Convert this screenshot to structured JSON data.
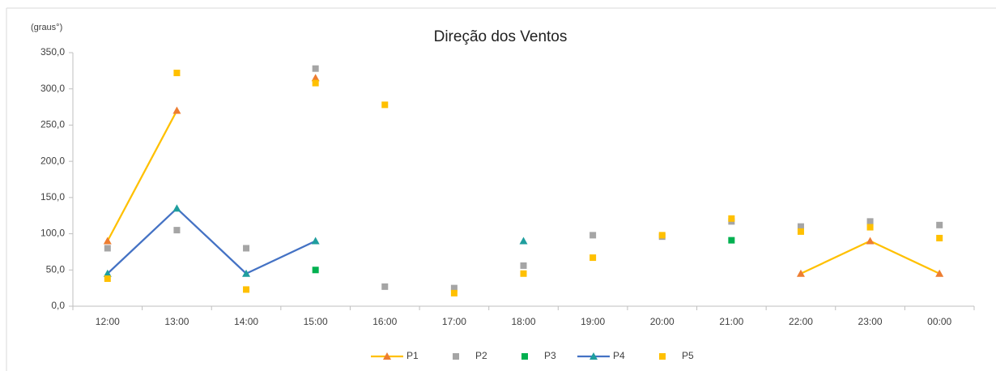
{
  "chart_data": {
    "type": "line",
    "title": "Direção dos Ventos",
    "y_label": "(graus°)",
    "categories": [
      "12:00",
      "13:00",
      "14:00",
      "15:00",
      "16:00",
      "17:00",
      "18:00",
      "19:00",
      "20:00",
      "21:00",
      "22:00",
      "23:00",
      "00:00"
    ],
    "ylim": [
      0,
      350
    ],
    "yticks": [
      {
        "value": 0,
        "label": "0,0"
      },
      {
        "value": 50,
        "label": "50,0"
      },
      {
        "value": 100,
        "label": "100,0"
      },
      {
        "value": 150,
        "label": "150,0"
      },
      {
        "value": 200,
        "label": "200,0"
      },
      {
        "value": 250,
        "label": "250,0"
      },
      {
        "value": 300,
        "label": "300,0"
      },
      {
        "value": 350,
        "label": "350,0"
      }
    ],
    "grid": false,
    "legend": "bottom",
    "series": [
      {
        "name": "P1",
        "line_color": "#ffc000",
        "marker": "triangle",
        "color": "#ed7d31",
        "values": [
          90,
          270,
          null,
          315,
          null,
          null,
          null,
          null,
          null,
          null,
          45,
          90,
          45
        ]
      },
      {
        "name": "P2",
        "line_color": null,
        "marker": "square",
        "color": "#a5a5a5",
        "values": [
          80,
          105,
          80,
          328,
          27,
          25,
          56,
          98,
          96,
          117,
          110,
          117,
          112
        ]
      },
      {
        "name": "P3",
        "line_color": null,
        "marker": "square",
        "color": "#00b050",
        "values": [
          null,
          null,
          null,
          50,
          null,
          null,
          null,
          null,
          null,
          91,
          null,
          null,
          null
        ]
      },
      {
        "name": "P4",
        "line_color": "#4472c4",
        "marker": "triangle",
        "color": "#1f9e9e",
        "values": [
          45,
          135,
          45,
          90,
          null,
          null,
          90,
          null,
          null,
          null,
          null,
          null,
          null
        ]
      },
      {
        "name": "P5",
        "line_color": null,
        "marker": "square",
        "color": "#ffc000",
        "values": [
          38,
          322,
          23,
          308,
          278,
          18,
          45,
          67,
          98,
          121,
          103,
          109,
          94
        ]
      }
    ]
  }
}
